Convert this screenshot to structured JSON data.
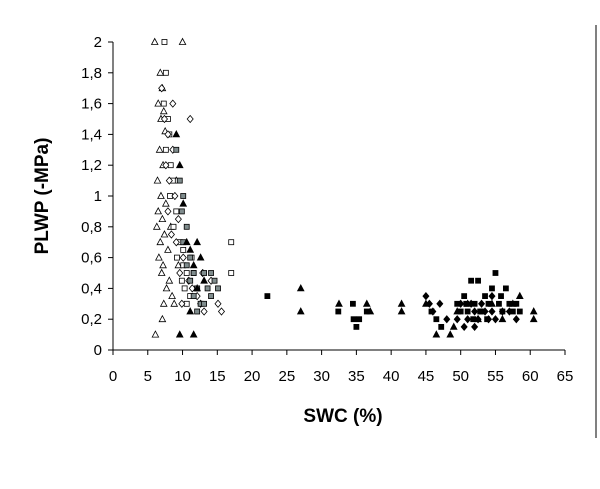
{
  "chart_data": {
    "type": "scatter",
    "title": "",
    "xlabel": "SWC (%)",
    "ylabel": "PLWP (-MPa)",
    "xlim": [
      0,
      65
    ],
    "ylim": [
      0,
      2
    ],
    "x_ticks": [
      "0",
      "5",
      "10",
      "15",
      "20",
      "25",
      "30",
      "35",
      "40",
      "45",
      "50",
      "55",
      "60",
      "65"
    ],
    "y_ticks": [
      "0",
      "0,2",
      "0,4",
      "0,6",
      "0,8",
      "1",
      "1,2",
      "1,4",
      "1,6",
      "1,8",
      "2"
    ],
    "grid": false,
    "legend": "none",
    "series": [
      {
        "name": "open-triangle",
        "marker": "triangle-open",
        "points": [
          [
            6,
            2
          ],
          [
            10,
            2
          ],
          [
            6.8,
            1.8
          ],
          [
            7.1,
            1.7
          ],
          [
            6.5,
            1.6
          ],
          [
            7.3,
            1.55
          ],
          [
            6.9,
            1.5
          ],
          [
            7.5,
            1.42
          ],
          [
            6.7,
            1.3
          ],
          [
            7.2,
            1.2
          ],
          [
            6.4,
            1.1
          ],
          [
            6.9,
            1.0
          ],
          [
            7.6,
            0.95
          ],
          [
            6.5,
            0.9
          ],
          [
            7.1,
            0.85
          ],
          [
            6.3,
            0.8
          ],
          [
            7.4,
            0.75
          ],
          [
            6.8,
            0.7
          ],
          [
            7.9,
            0.65
          ],
          [
            6.6,
            0.6
          ],
          [
            7.2,
            0.55
          ],
          [
            7.0,
            0.5
          ],
          [
            8.1,
            0.45
          ],
          [
            7.7,
            0.4
          ],
          [
            8.5,
            0.35
          ],
          [
            7.3,
            0.3
          ],
          [
            8.8,
            0.3
          ],
          [
            7.1,
            0.2
          ],
          [
            6.1,
            0.1
          ],
          [
            9.4,
            0.55
          ],
          [
            8.3,
            0.8
          ],
          [
            9.1,
            1.1
          ]
        ]
      },
      {
        "name": "open-square",
        "marker": "square-open",
        "points": [
          [
            7.4,
            2
          ],
          [
            7.6,
            1.8
          ],
          [
            7.3,
            1.6
          ],
          [
            7.9,
            1.5
          ],
          [
            8.1,
            1.4
          ],
          [
            7.6,
            1.3
          ],
          [
            8.3,
            1.2
          ],
          [
            8.6,
            1.1
          ],
          [
            8.2,
            1.0
          ],
          [
            9.1,
            0.9
          ],
          [
            8.7,
            0.8
          ],
          [
            9.6,
            0.7
          ],
          [
            9.2,
            0.6
          ],
          [
            10.1,
            0.55
          ],
          [
            10.6,
            0.5
          ],
          [
            9.9,
            0.45
          ],
          [
            10.3,
            0.4
          ],
          [
            11.1,
            0.35
          ],
          [
            10.6,
            0.3
          ],
          [
            11.6,
            0.5
          ],
          [
            12.1,
            0.4
          ],
          [
            17.0,
            0.7
          ],
          [
            17.0,
            0.5
          ],
          [
            11.3,
            0.6
          ],
          [
            10.1,
            0.65
          ]
        ]
      },
      {
        "name": "open-diamond",
        "marker": "diamond-open",
        "points": [
          [
            7.0,
            1.7
          ],
          [
            7.4,
            1.5
          ],
          [
            7.9,
            1.4
          ],
          [
            8.6,
            1.3
          ],
          [
            7.6,
            1.2
          ],
          [
            8.1,
            1.1
          ],
          [
            8.9,
            1.0
          ],
          [
            7.9,
            0.9
          ],
          [
            9.4,
            0.85
          ],
          [
            8.4,
            0.75
          ],
          [
            9.1,
            0.7
          ],
          [
            10.1,
            0.6
          ],
          [
            9.6,
            0.5
          ],
          [
            10.9,
            0.45
          ],
          [
            11.4,
            0.4
          ],
          [
            12.1,
            0.35
          ],
          [
            12.6,
            0.3
          ],
          [
            13.1,
            0.25
          ],
          [
            12.9,
            0.5
          ],
          [
            14.1,
            0.45
          ],
          [
            15.1,
            0.3
          ],
          [
            15.6,
            0.25
          ],
          [
            11.1,
            1.5
          ],
          [
            8.6,
            1.6
          ],
          [
            9.9,
            0.3
          ]
        ]
      },
      {
        "name": "gray-square",
        "marker": "square-gray",
        "points": [
          [
            9.1,
            1.3
          ],
          [
            9.6,
            1.1
          ],
          [
            10.1,
            1.0
          ],
          [
            9.9,
            0.9
          ],
          [
            10.6,
            0.8
          ],
          [
            10.1,
            0.7
          ],
          [
            11.1,
            0.6
          ],
          [
            10.6,
            0.55
          ],
          [
            11.6,
            0.5
          ],
          [
            11.1,
            0.45
          ],
          [
            12.1,
            0.4
          ],
          [
            11.6,
            0.35
          ],
          [
            12.6,
            0.3
          ],
          [
            13.1,
            0.5
          ],
          [
            13.6,
            0.4
          ],
          [
            14.1,
            0.35
          ],
          [
            14.6,
            0.45
          ],
          [
            12.1,
            0.25
          ],
          [
            13.1,
            0.3
          ],
          [
            14.1,
            0.5
          ],
          [
            15.1,
            0.4
          ]
        ]
      },
      {
        "name": "filled-triangle",
        "marker": "triangle-filled",
        "points": [
          [
            9.1,
            1.4
          ],
          [
            9.6,
            1.2
          ],
          [
            10.1,
            0.95
          ],
          [
            10.6,
            0.7
          ],
          [
            11.1,
            0.65
          ],
          [
            11.6,
            0.55
          ],
          [
            12.1,
            0.7
          ],
          [
            12.6,
            0.6
          ],
          [
            13.1,
            0.45
          ],
          [
            12.1,
            0.4
          ],
          [
            9.6,
            0.1
          ],
          [
            11.6,
            0.1
          ],
          [
            11.1,
            0.25
          ],
          [
            27.0,
            0.4
          ],
          [
            27.0,
            0.25
          ],
          [
            32.5,
            0.3
          ],
          [
            36.5,
            0.3
          ],
          [
            37.0,
            0.25
          ],
          [
            41.5,
            0.3
          ],
          [
            41.5,
            0.25
          ],
          [
            45.0,
            0.3
          ],
          [
            46.5,
            0.1
          ],
          [
            48.5,
            0.1
          ],
          [
            49.0,
            0.15
          ],
          [
            51.0,
            0.3
          ],
          [
            52.5,
            0.2
          ],
          [
            54.5,
            0.3
          ],
          [
            56.0,
            0.2
          ],
          [
            57.5,
            0.3
          ],
          [
            58.5,
            0.35
          ],
          [
            60.5,
            0.25
          ],
          [
            60.5,
            0.2
          ],
          [
            49.5,
            0.25
          ]
        ]
      },
      {
        "name": "filled-square",
        "marker": "square-filled",
        "points": [
          [
            22.2,
            0.35
          ],
          [
            32.4,
            0.25
          ],
          [
            34.5,
            0.3
          ],
          [
            34.6,
            0.2
          ],
          [
            35.0,
            0.15
          ],
          [
            35.4,
            0.2
          ],
          [
            36.5,
            0.25
          ],
          [
            45.8,
            0.25
          ],
          [
            46.5,
            0.2
          ],
          [
            47.2,
            0.15
          ],
          [
            49.5,
            0.3
          ],
          [
            50.0,
            0.25
          ],
          [
            50.5,
            0.35
          ],
          [
            51.0,
            0.25
          ],
          [
            51.5,
            0.45
          ],
          [
            52.0,
            0.3
          ],
          [
            52.5,
            0.45
          ],
          [
            53.0,
            0.25
          ],
          [
            53.5,
            0.35
          ],
          [
            54.0,
            0.3
          ],
          [
            54.5,
            0.4
          ],
          [
            55.0,
            0.5
          ],
          [
            55.5,
            0.3
          ],
          [
            56.0,
            0.25
          ],
          [
            56.5,
            0.4
          ],
          [
            57.0,
            0.3
          ],
          [
            57.5,
            0.25
          ],
          [
            58.0,
            0.3
          ],
          [
            58.5,
            0.25
          ],
          [
            51.8,
            0.2
          ],
          [
            53.8,
            0.2
          ],
          [
            55.8,
            0.35
          ],
          [
            50.8,
            0.3
          ],
          [
            52.8,
            0.25
          ]
        ]
      },
      {
        "name": "filled-diamond",
        "marker": "diamond-filled",
        "points": [
          [
            45.0,
            0.35
          ],
          [
            45.5,
            0.3
          ],
          [
            46.0,
            0.25
          ],
          [
            47.0,
            0.3
          ],
          [
            48.0,
            0.2
          ],
          [
            49.5,
            0.2
          ],
          [
            50.5,
            0.15
          ],
          [
            51.0,
            0.2
          ],
          [
            51.5,
            0.3
          ],
          [
            52.0,
            0.25
          ],
          [
            52.5,
            0.2
          ],
          [
            53.0,
            0.3
          ],
          [
            53.5,
            0.25
          ],
          [
            54.0,
            0.2
          ],
          [
            54.5,
            0.25
          ],
          [
            55.0,
            0.2
          ],
          [
            56.0,
            0.25
          ],
          [
            57.0,
            0.25
          ],
          [
            58.0,
            0.2
          ],
          [
            50.0,
            0.3
          ],
          [
            54.5,
            0.35
          ],
          [
            52.0,
            0.15
          ]
        ]
      }
    ]
  }
}
